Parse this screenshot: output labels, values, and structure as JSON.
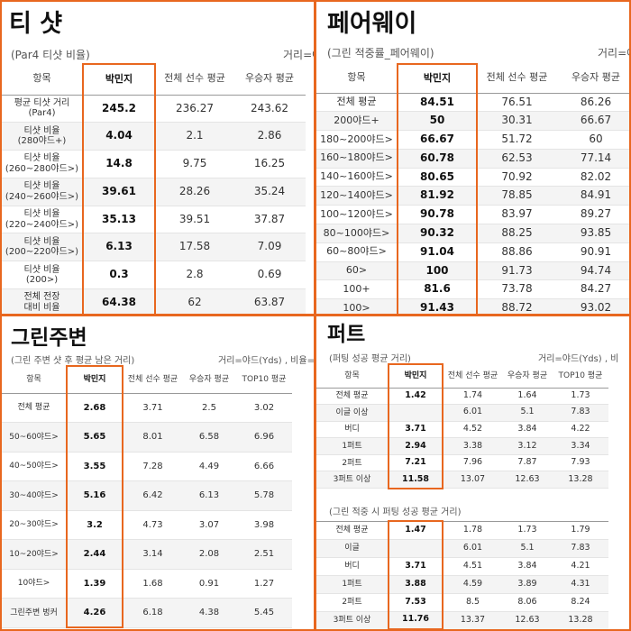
{
  "panels": [
    {
      "title": "티 샷",
      "subtitle": "(Par4 티샷 비율)",
      "note": "거리=야",
      "columns": [
        "항목",
        "박민지",
        "전체 선수 평균",
        "우승자 평균"
      ],
      "rows": [
        {
          "label": "평균 티샷 거리\n(Par4)",
          "values": [
            "245.2",
            "236.27",
            "243.62"
          ]
        },
        {
          "label": "티샷 비율\n(280야드+)",
          "values": [
            "4.04",
            "2.1",
            "2.86"
          ]
        },
        {
          "label": "티샷 비율\n(260~280야드>)",
          "values": [
            "14.8",
            "9.75",
            "16.25"
          ]
        },
        {
          "label": "티샷 비율\n(240~260야드>)",
          "values": [
            "39.61",
            "28.26",
            "35.24"
          ]
        },
        {
          "label": "티샷 비율\n(220~240야드>)",
          "values": [
            "35.13",
            "39.51",
            "37.87"
          ]
        },
        {
          "label": "티샷 비율\n(200~220야드>)",
          "values": [
            "6.13",
            "17.58",
            "7.09"
          ]
        },
        {
          "label": "티샷 비율\n(200>)",
          "values": [
            "0.3",
            "2.8",
            "0.69"
          ]
        },
        {
          "label": "전체 전장\n대비 비율",
          "values": [
            "64.38",
            "62",
            "63.87"
          ]
        }
      ]
    },
    {
      "title": "페어웨이",
      "subtitle": "(그린 적중률_페어웨이)",
      "note": "거리=야",
      "columns": [
        "항목",
        "박민지",
        "전체 선수 평균",
        "우승자 평균"
      ],
      "rows": [
        {
          "label": "전체 평균",
          "values": [
            "84.51",
            "76.51",
            "86.26"
          ]
        },
        {
          "label": "200야드+",
          "values": [
            "50",
            "30.31",
            "66.67"
          ]
        },
        {
          "label": "180~200야드>",
          "values": [
            "66.67",
            "51.72",
            "60"
          ]
        },
        {
          "label": "160~180야드>",
          "values": [
            "60.78",
            "62.53",
            "77.14"
          ]
        },
        {
          "label": "140~160야드>",
          "values": [
            "80.65",
            "70.92",
            "82.02"
          ]
        },
        {
          "label": "120~140야드>",
          "values": [
            "81.92",
            "78.85",
            "84.91"
          ]
        },
        {
          "label": "100~120야드>",
          "values": [
            "90.78",
            "83.97",
            "89.27"
          ]
        },
        {
          "label": "80~100야드>",
          "values": [
            "90.32",
            "88.25",
            "93.85"
          ]
        },
        {
          "label": "60~80야드>",
          "values": [
            "91.04",
            "88.86",
            "90.91"
          ]
        },
        {
          "label": "60>",
          "values": [
            "100",
            "91.73",
            "94.74"
          ]
        },
        {
          "label": "100+",
          "values": [
            "81.6",
            "73.78",
            "84.27"
          ]
        },
        {
          "label": "100>",
          "values": [
            "91.43",
            "88.72",
            "93.02"
          ]
        }
      ]
    },
    {
      "title": "그린주변",
      "subtitle": "(그린 주변 샷 후 평균 남은 거리)",
      "note": "거리=야드(Yds) , 비율=퍼센",
      "columns": [
        "항목",
        "박민지",
        "전체 선수 평균",
        "우승자 평균",
        "TOP10 평균"
      ],
      "rows": [
        {
          "label": "전체 평균",
          "values": [
            "2.68",
            "3.71",
            "2.5",
            "3.02"
          ]
        },
        {
          "label": "50~60야드>",
          "values": [
            "5.65",
            "8.01",
            "6.58",
            "6.96"
          ]
        },
        {
          "label": "40~50야드>",
          "values": [
            "3.55",
            "7.28",
            "4.49",
            "6.66"
          ]
        },
        {
          "label": "30~40야드>",
          "values": [
            "5.16",
            "6.42",
            "6.13",
            "5.78"
          ]
        },
        {
          "label": "20~30야드>",
          "values": [
            "3.2",
            "4.73",
            "3.07",
            "3.98"
          ]
        },
        {
          "label": "10~20야드>",
          "values": [
            "2.44",
            "3.14",
            "2.08",
            "2.51"
          ]
        },
        {
          "label": "10야드>",
          "values": [
            "1.39",
            "1.68",
            "0.91",
            "1.27"
          ]
        },
        {
          "label": "그린주변 벙커",
          "values": [
            "4.26",
            "6.18",
            "4.38",
            "5.45"
          ]
        }
      ]
    },
    {
      "title": "퍼트",
      "subtitle": "(퍼팅 성공 평균 거리)",
      "note": "거리=야드(Yds) , 비",
      "columns": [
        "항목",
        "박민지",
        "전체 선수 평균",
        "우승자 평균",
        "TOP10 평균"
      ],
      "rows": [
        {
          "label": "전체 평균",
          "values": [
            "1.42",
            "1.74",
            "1.64",
            "1.73"
          ]
        },
        {
          "label": "이글 이상",
          "values": [
            null,
            "6.01",
            "5.1",
            "7.83"
          ]
        },
        {
          "label": "버디",
          "values": [
            "3.71",
            "4.52",
            "3.84",
            "4.22"
          ]
        },
        {
          "label": "1퍼트",
          "values": [
            "2.94",
            "3.38",
            "3.12",
            "3.34"
          ]
        },
        {
          "label": "2퍼트",
          "values": [
            "7.21",
            "7.96",
            "7.87",
            "7.93"
          ]
        },
        {
          "label": "3퍼트 이상",
          "values": [
            "11.58",
            "13.07",
            "12.63",
            "13.28"
          ]
        }
      ],
      "second": {
        "subtitle": "(그린 적중 시 퍼팅 성공 평균 거리)",
        "rows": [
          {
            "label": "전체 평균",
            "values": [
              "1.47",
              "1.78",
              "1.73",
              "1.79"
            ]
          },
          {
            "label": "이글",
            "values": [
              null,
              "6.01",
              "5.1",
              "7.83"
            ]
          },
          {
            "label": "버디",
            "values": [
              "3.71",
              "4.51",
              "3.84",
              "4.21"
            ]
          },
          {
            "label": "1퍼트",
            "values": [
              "3.88",
              "4.59",
              "3.89",
              "4.31"
            ]
          },
          {
            "label": "2퍼트",
            "values": [
              "7.53",
              "8.5",
              "8.06",
              "8.24"
            ]
          },
          {
            "label": "3퍼트 이상",
            "values": [
              "11.76",
              "13.37",
              "12.63",
              "13.28"
            ]
          }
        ]
      }
    }
  ]
}
